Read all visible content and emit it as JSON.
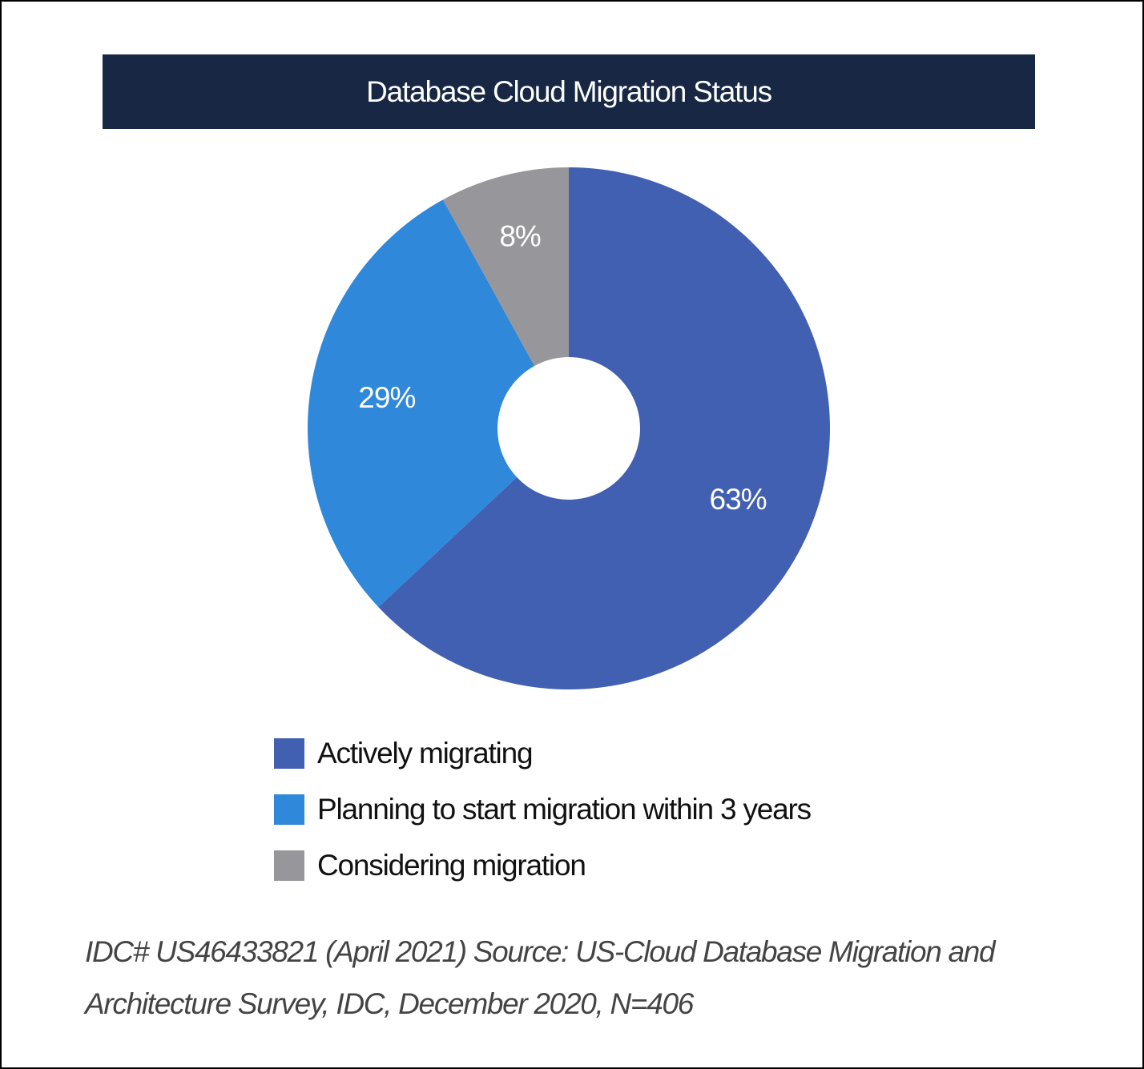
{
  "colors": {
    "title_bar": "#172744",
    "title_text": "#ffffff",
    "actively_migrating": "#4260B1",
    "planning": "#2F88D9",
    "considering": "#97979B"
  },
  "chart_data": {
    "type": "pie",
    "style": "donut",
    "title": "Database Cloud Migration Status",
    "slices": [
      {
        "label": "Actively migrating",
        "value": 63,
        "display": "63%",
        "color": "#4260B1"
      },
      {
        "label": "Planning to start migration within 3 years",
        "value": 29,
        "display": "29%",
        "color": "#2F88D9"
      },
      {
        "label": "Considering migration",
        "value": 8,
        "display": "8%",
        "color": "#97979B"
      }
    ],
    "legend_position": "bottom"
  },
  "source_note": "IDC# US46433821 (April 2021) Source: US-Cloud Database Migration and Architecture Survey, IDC, December 2020, N=406"
}
